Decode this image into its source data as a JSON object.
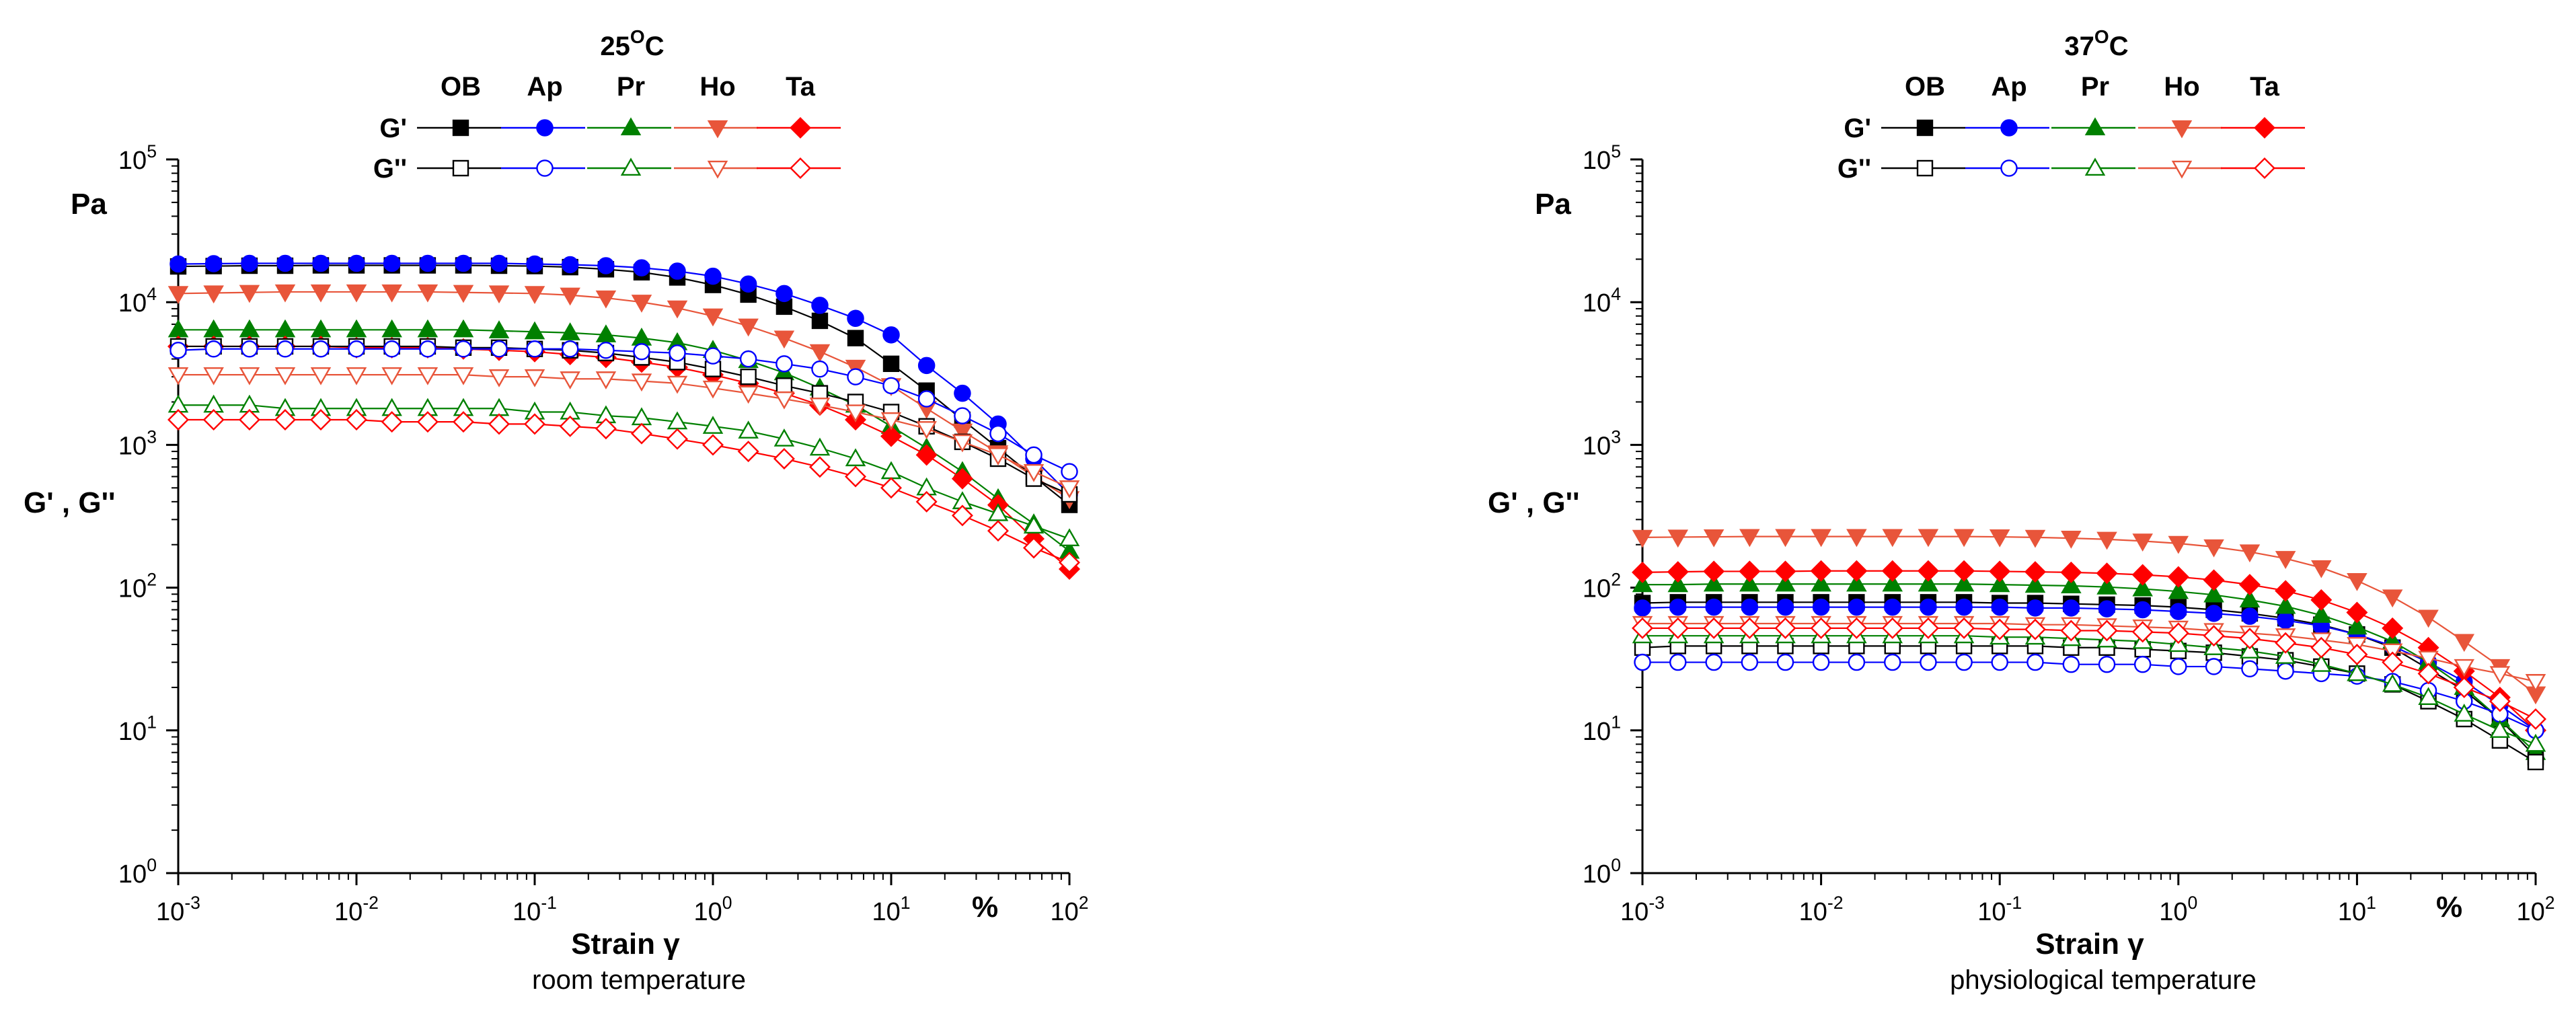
{
  "series_styles": [
    {
      "key": "OB",
      "color": "#000000",
      "shape": "square"
    },
    {
      "key": "Ap",
      "color": "#0000ff",
      "shape": "circle"
    },
    {
      "key": "Pr",
      "color": "#008000",
      "shape": "triangle-up"
    },
    {
      "key": "Ho",
      "color": "#e8553a",
      "shape": "triangle-down"
    },
    {
      "key": "Ta",
      "color": "#ff0000",
      "shape": "diamond"
    }
  ],
  "chart_data": [
    {
      "type": "scatter",
      "scale": "log-log",
      "title": "25",
      "title_unit": "C",
      "title_degree": "O",
      "subtitle": "room temperature",
      "xlabel": "Strain γ",
      "xunit": "%",
      "ylabel": "G' , G''",
      "yunit": "Pa",
      "xlim": [
        0.001,
        100
      ],
      "ylim": [
        1,
        100000
      ],
      "x_ticks": [
        "10-3",
        "10-2",
        "10-1",
        "100",
        "101",
        "102"
      ],
      "y_ticks": [
        "100",
        "101",
        "102",
        "103",
        "104",
        "105"
      ],
      "legend": {
        "columns": [
          "OB",
          "Ap",
          "Pr",
          "Ho",
          "Ta"
        ],
        "rows": [
          "G'",
          "G''"
        ]
      },
      "x": [
        0.001,
        0.00158,
        0.00251,
        0.00398,
        0.00631,
        0.01,
        0.0158,
        0.0251,
        0.0398,
        0.0631,
        0.1,
        0.158,
        0.251,
        0.398,
        0.631,
        1,
        1.58,
        2.51,
        3.98,
        6.31,
        10,
        15.8,
        25.1,
        39.8,
        63.1,
        100
      ],
      "series": [
        {
          "name": "OB G'",
          "values": [
            17800,
            17900,
            18000,
            18000,
            18100,
            18100,
            18100,
            18100,
            18100,
            18000,
            17900,
            17600,
            17000,
            16200,
            14900,
            13200,
            11300,
            9300,
            7400,
            5600,
            3700,
            2400,
            1500,
            950,
            600,
            380
          ]
        },
        {
          "name": "Ap G'",
          "values": [
            18500,
            18600,
            18700,
            18700,
            18700,
            18700,
            18700,
            18700,
            18700,
            18700,
            18500,
            18300,
            18000,
            17400,
            16500,
            15200,
            13400,
            11500,
            9500,
            7700,
            5900,
            3600,
            2300,
            1400,
            800,
            450
          ]
        },
        {
          "name": "Pr G'",
          "values": [
            6400,
            6400,
            6400,
            6400,
            6400,
            6400,
            6400,
            6400,
            6400,
            6300,
            6200,
            6100,
            5900,
            5600,
            5200,
            4600,
            3900,
            3200,
            2500,
            1900,
            1350,
            950,
            650,
            420,
            280,
            180
          ]
        },
        {
          "name": "Ho G'",
          "values": [
            11500,
            11600,
            11700,
            11800,
            11800,
            11800,
            11800,
            11800,
            11700,
            11600,
            11500,
            11200,
            10700,
            10000,
            9100,
            8000,
            6800,
            5600,
            4500,
            3500,
            2600,
            1800,
            1250,
            880,
            600,
            420
          ]
        },
        {
          "name": "Ta G'",
          "values": [
            4900,
            4900,
            4900,
            4900,
            4900,
            4800,
            4800,
            4800,
            4700,
            4600,
            4500,
            4300,
            4100,
            3800,
            3500,
            3100,
            2700,
            2300,
            1900,
            1500,
            1150,
            850,
            580,
            380,
            220,
            135
          ]
        },
        {
          "name": "OB G''",
          "values": [
            4900,
            4900,
            4900,
            4900,
            4900,
            4900,
            4900,
            4900,
            4800,
            4800,
            4700,
            4600,
            4400,
            4100,
            3800,
            3400,
            3000,
            2600,
            2300,
            2000,
            1700,
            1350,
            1050,
            800,
            580,
            450
          ]
        },
        {
          "name": "Ap G''",
          "values": [
            4600,
            4700,
            4700,
            4700,
            4700,
            4700,
            4700,
            4700,
            4700,
            4700,
            4700,
            4700,
            4600,
            4500,
            4400,
            4200,
            4000,
            3700,
            3400,
            3000,
            2600,
            2100,
            1600,
            1200,
            850,
            650
          ]
        },
        {
          "name": "Pr G''",
          "values": [
            1900,
            1900,
            1900,
            1800,
            1800,
            1800,
            1800,
            1800,
            1800,
            1800,
            1700,
            1700,
            1600,
            1550,
            1450,
            1350,
            1250,
            1100,
            950,
            800,
            650,
            500,
            400,
            330,
            270,
            220
          ]
        },
        {
          "name": "Ho G''",
          "values": [
            3100,
            3100,
            3100,
            3100,
            3100,
            3100,
            3100,
            3100,
            3100,
            3000,
            3000,
            2900,
            2900,
            2800,
            2700,
            2500,
            2300,
            2100,
            1900,
            1700,
            1500,
            1300,
            1050,
            850,
            650,
            500
          ]
        },
        {
          "name": "Ta G''",
          "values": [
            1500,
            1500,
            1500,
            1500,
            1500,
            1500,
            1450,
            1450,
            1450,
            1400,
            1400,
            1350,
            1300,
            1200,
            1100,
            1000,
            900,
            800,
            700,
            600,
            500,
            400,
            320,
            250,
            190,
            150
          ]
        }
      ]
    },
    {
      "type": "scatter",
      "scale": "log-log",
      "title": "37",
      "title_unit": "C",
      "title_degree": "O",
      "subtitle": "physiological temperature",
      "xlabel": "Strain γ",
      "xunit": "%",
      "ylabel": "G' , G''",
      "yunit": "Pa",
      "xlim": [
        0.001,
        100
      ],
      "ylim": [
        1,
        100000
      ],
      "x_ticks": [
        "10-3",
        "10-2",
        "10-1",
        "100",
        "101",
        "102"
      ],
      "y_ticks": [
        "100",
        "101",
        "102",
        "103",
        "104",
        "105"
      ],
      "legend": {
        "columns": [
          "OB",
          "Ap",
          "Pr",
          "Ho",
          "Ta"
        ],
        "rows": [
          "G'",
          "G''"
        ]
      },
      "x": [
        0.001,
        0.00158,
        0.00251,
        0.00398,
        0.00631,
        0.01,
        0.0158,
        0.0251,
        0.0398,
        0.0631,
        0.1,
        0.158,
        0.251,
        0.398,
        0.631,
        1,
        1.58,
        2.51,
        3.98,
        6.31,
        10,
        15.8,
        25.1,
        39.8,
        63.1,
        100
      ],
      "series": [
        {
          "name": "OB G'",
          "values": [
            78,
            79,
            79,
            79,
            79,
            79,
            79,
            79,
            79,
            79,
            78,
            78,
            77,
            76,
            75,
            73,
            70,
            66,
            61,
            55,
            47,
            38,
            27,
            19,
            12,
            6.5
          ]
        },
        {
          "name": "Ap G'",
          "values": [
            72,
            73,
            73,
            73,
            73,
            73,
            73,
            73,
            73,
            73,
            73,
            72,
            72,
            71,
            70,
            68,
            66,
            63,
            59,
            54,
            47,
            39,
            30,
            22,
            15,
            10
          ]
        },
        {
          "name": "Pr G'",
          "values": [
            105,
            105,
            106,
            106,
            106,
            106,
            106,
            106,
            106,
            106,
            105,
            104,
            103,
            101,
            98,
            94,
            89,
            82,
            74,
            64,
            53,
            42,
            30,
            20,
            12,
            7
          ]
        },
        {
          "name": "Ho G'",
          "values": [
            225,
            226,
            227,
            228,
            228,
            228,
            228,
            228,
            228,
            228,
            227,
            225,
            222,
            218,
            212,
            204,
            193,
            178,
            160,
            138,
            112,
            86,
            62,
            42,
            28,
            18
          ]
        },
        {
          "name": "Ta G'",
          "values": [
            128,
            129,
            130,
            130,
            130,
            131,
            131,
            131,
            131,
            131,
            130,
            129,
            128,
            126,
            123,
            119,
            113,
            105,
            95,
            82,
            67,
            52,
            38,
            26,
            17,
            10
          ]
        },
        {
          "name": "OB G''",
          "values": [
            38,
            39,
            39,
            39,
            39,
            39,
            39,
            39,
            39,
            39,
            39,
            39,
            38,
            38,
            37,
            36,
            35,
            33,
            31,
            28,
            25,
            21,
            16,
            12,
            8.5,
            6
          ]
        },
        {
          "name": "Ap G''",
          "values": [
            30,
            30,
            30,
            30,
            30,
            30,
            30,
            30,
            30,
            30,
            30,
            30,
            29,
            29,
            29,
            28,
            28,
            27,
            26,
            25,
            24,
            22,
            19,
            16,
            13,
            10
          ]
        },
        {
          "name": "Pr G''",
          "values": [
            46,
            46,
            46,
            46,
            46,
            46,
            46,
            46,
            46,
            46,
            45,
            45,
            44,
            43,
            42,
            40,
            38,
            36,
            33,
            29,
            25,
            21,
            17,
            13,
            10,
            8
          ]
        },
        {
          "name": "Ho G''",
          "values": [
            56,
            56,
            56,
            56,
            56,
            56,
            56,
            56,
            56,
            56,
            56,
            55,
            55,
            54,
            53,
            52,
            50,
            48,
            46,
            43,
            40,
            36,
            32,
            28,
            25,
            22
          ]
        },
        {
          "name": "Ta G''",
          "values": [
            52,
            52,
            52,
            52,
            52,
            52,
            52,
            52,
            52,
            52,
            51,
            51,
            50,
            50,
            49,
            48,
            46,
            44,
            41,
            38,
            34,
            30,
            25,
            20,
            16,
            12
          ]
        }
      ]
    }
  ]
}
